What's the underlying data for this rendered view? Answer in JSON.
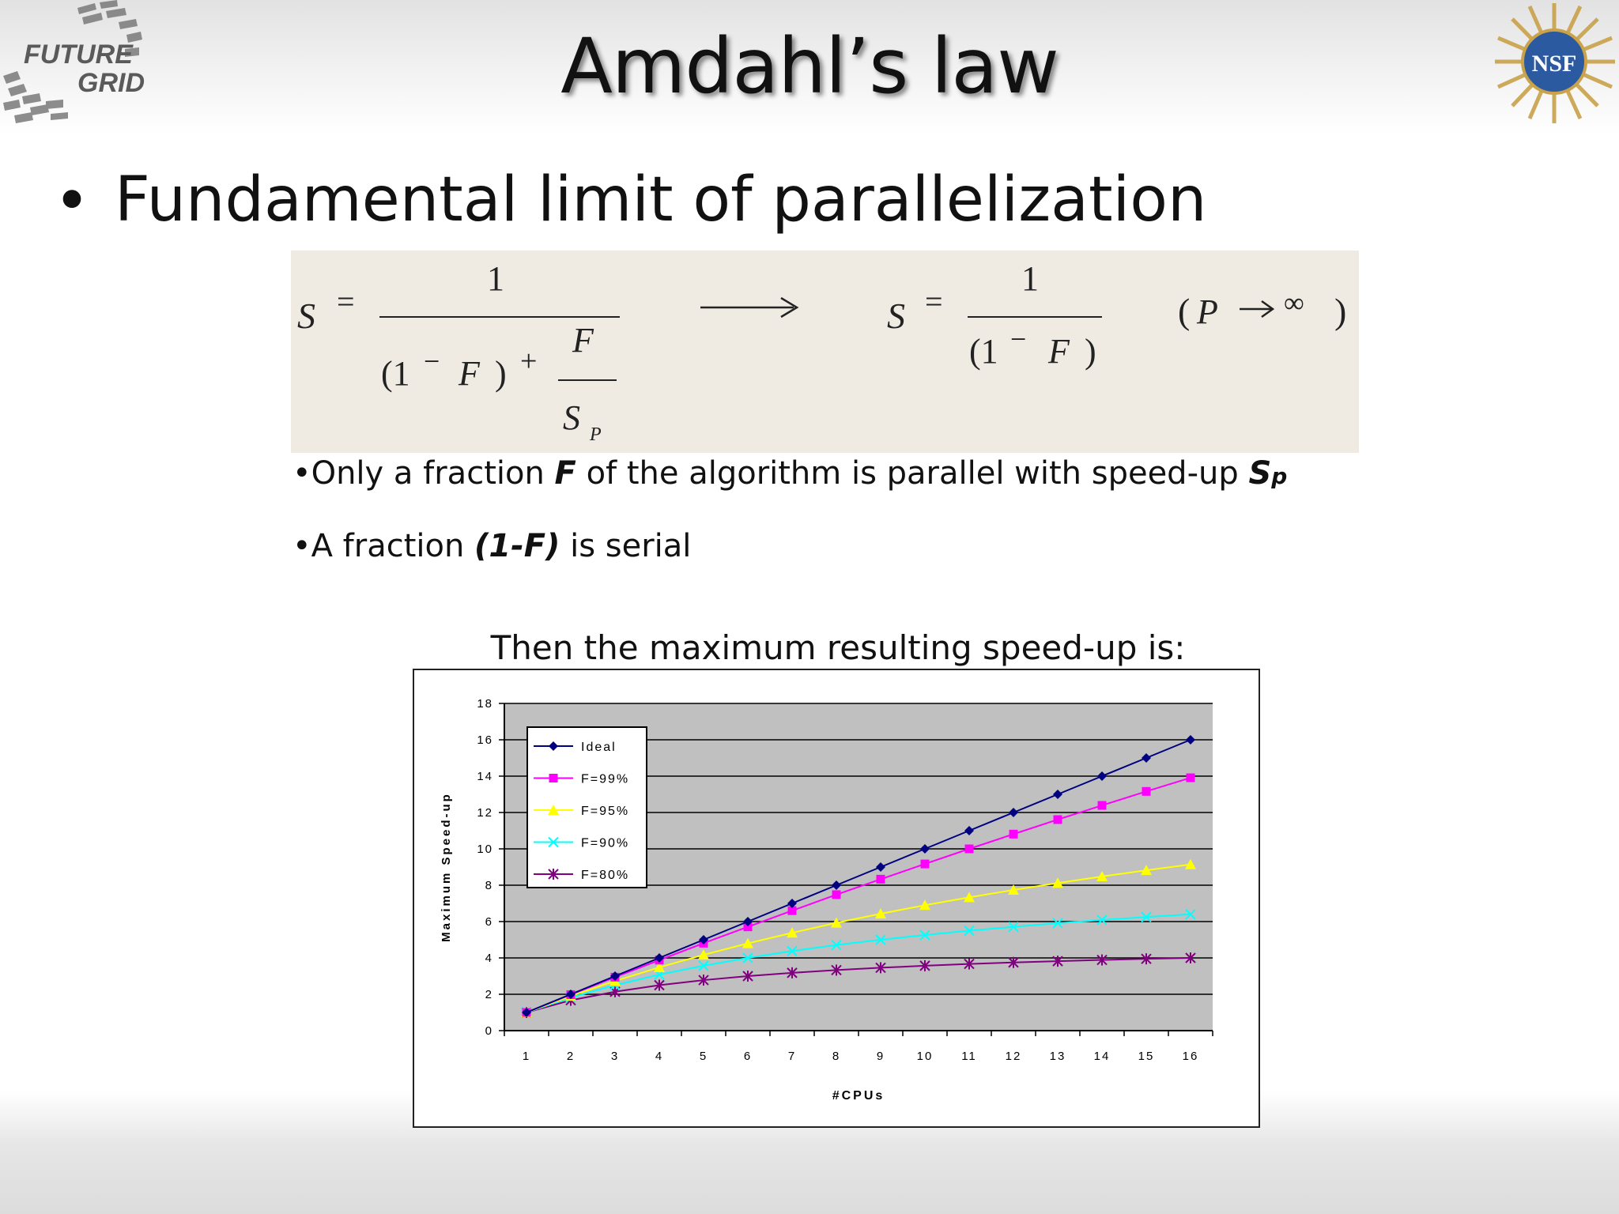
{
  "slide": {
    "title": "Amdahl’s law",
    "bullet": "Fundamental limit of parallelization",
    "line1_pre": "•Only a fraction ",
    "line1_var": "F",
    "line1_mid": " of the algorithm is parallel with speed-up ",
    "line1_sp": "S",
    "line1_sp_sub": "p",
    "line2_pre": "•A fraction ",
    "line2_var": "(1-F)",
    "line2_post": " is serial",
    "chart_caption": "Then the maximum resulting speed-up is:"
  },
  "logos": {
    "left_line1": "FUTURE",
    "left_line2": "GRID",
    "right": "NSF"
  },
  "formula": {
    "S": "S",
    "eq": "=",
    "one": "1",
    "open": "(1",
    "minus": "−",
    "F": "F",
    "close": ")",
    "plus": "+",
    "Sp_S": "S",
    "Sp_P": "P",
    "P": "P",
    "inf": "∞",
    "lparen": "(",
    "rparen": ")"
  },
  "chart_data": {
    "type": "line",
    "xlabel": "#CPUs",
    "ylabel": "Maximum Speed-up",
    "x": [
      1,
      2,
      3,
      4,
      5,
      6,
      7,
      8,
      9,
      10,
      11,
      12,
      13,
      14,
      15,
      16
    ],
    "ylim": [
      0,
      18
    ],
    "yticks": [
      0,
      2,
      4,
      6,
      8,
      10,
      12,
      14,
      16,
      18
    ],
    "grid": true,
    "legend_position": "top-left",
    "series": [
      {
        "name": "Ideal",
        "color": "#000080",
        "marker": "diamond",
        "values": [
          1,
          2,
          3,
          4,
          5,
          6,
          7,
          8,
          9,
          10,
          11,
          12,
          13,
          14,
          15,
          16
        ]
      },
      {
        "name": "F=99%",
        "color": "#ff00ff",
        "marker": "square",
        "values": [
          1,
          1.98,
          2.94,
          3.88,
          4.81,
          5.71,
          6.6,
          7.48,
          8.33,
          9.17,
          10,
          10.81,
          11.61,
          12.39,
          13.16,
          13.91
        ]
      },
      {
        "name": "F=95%",
        "color": "#ffff00",
        "marker": "triangle",
        "values": [
          1,
          1.9,
          2.73,
          3.48,
          4.17,
          4.8,
          5.38,
          5.93,
          6.43,
          6.9,
          7.33,
          7.74,
          8.12,
          8.48,
          8.82,
          9.14
        ]
      },
      {
        "name": "F=90%",
        "color": "#00ffff",
        "marker": "x",
        "values": [
          1,
          1.82,
          2.5,
          3.08,
          3.57,
          4,
          4.38,
          4.71,
          5,
          5.26,
          5.5,
          5.71,
          5.91,
          6.09,
          6.25,
          6.4
        ]
      },
      {
        "name": "F=80%",
        "color": "#800080",
        "marker": "star",
        "values": [
          1,
          1.67,
          2.14,
          2.5,
          2.78,
          3,
          3.18,
          3.33,
          3.46,
          3.57,
          3.67,
          3.75,
          3.82,
          3.89,
          3.95,
          4
        ]
      }
    ]
  }
}
